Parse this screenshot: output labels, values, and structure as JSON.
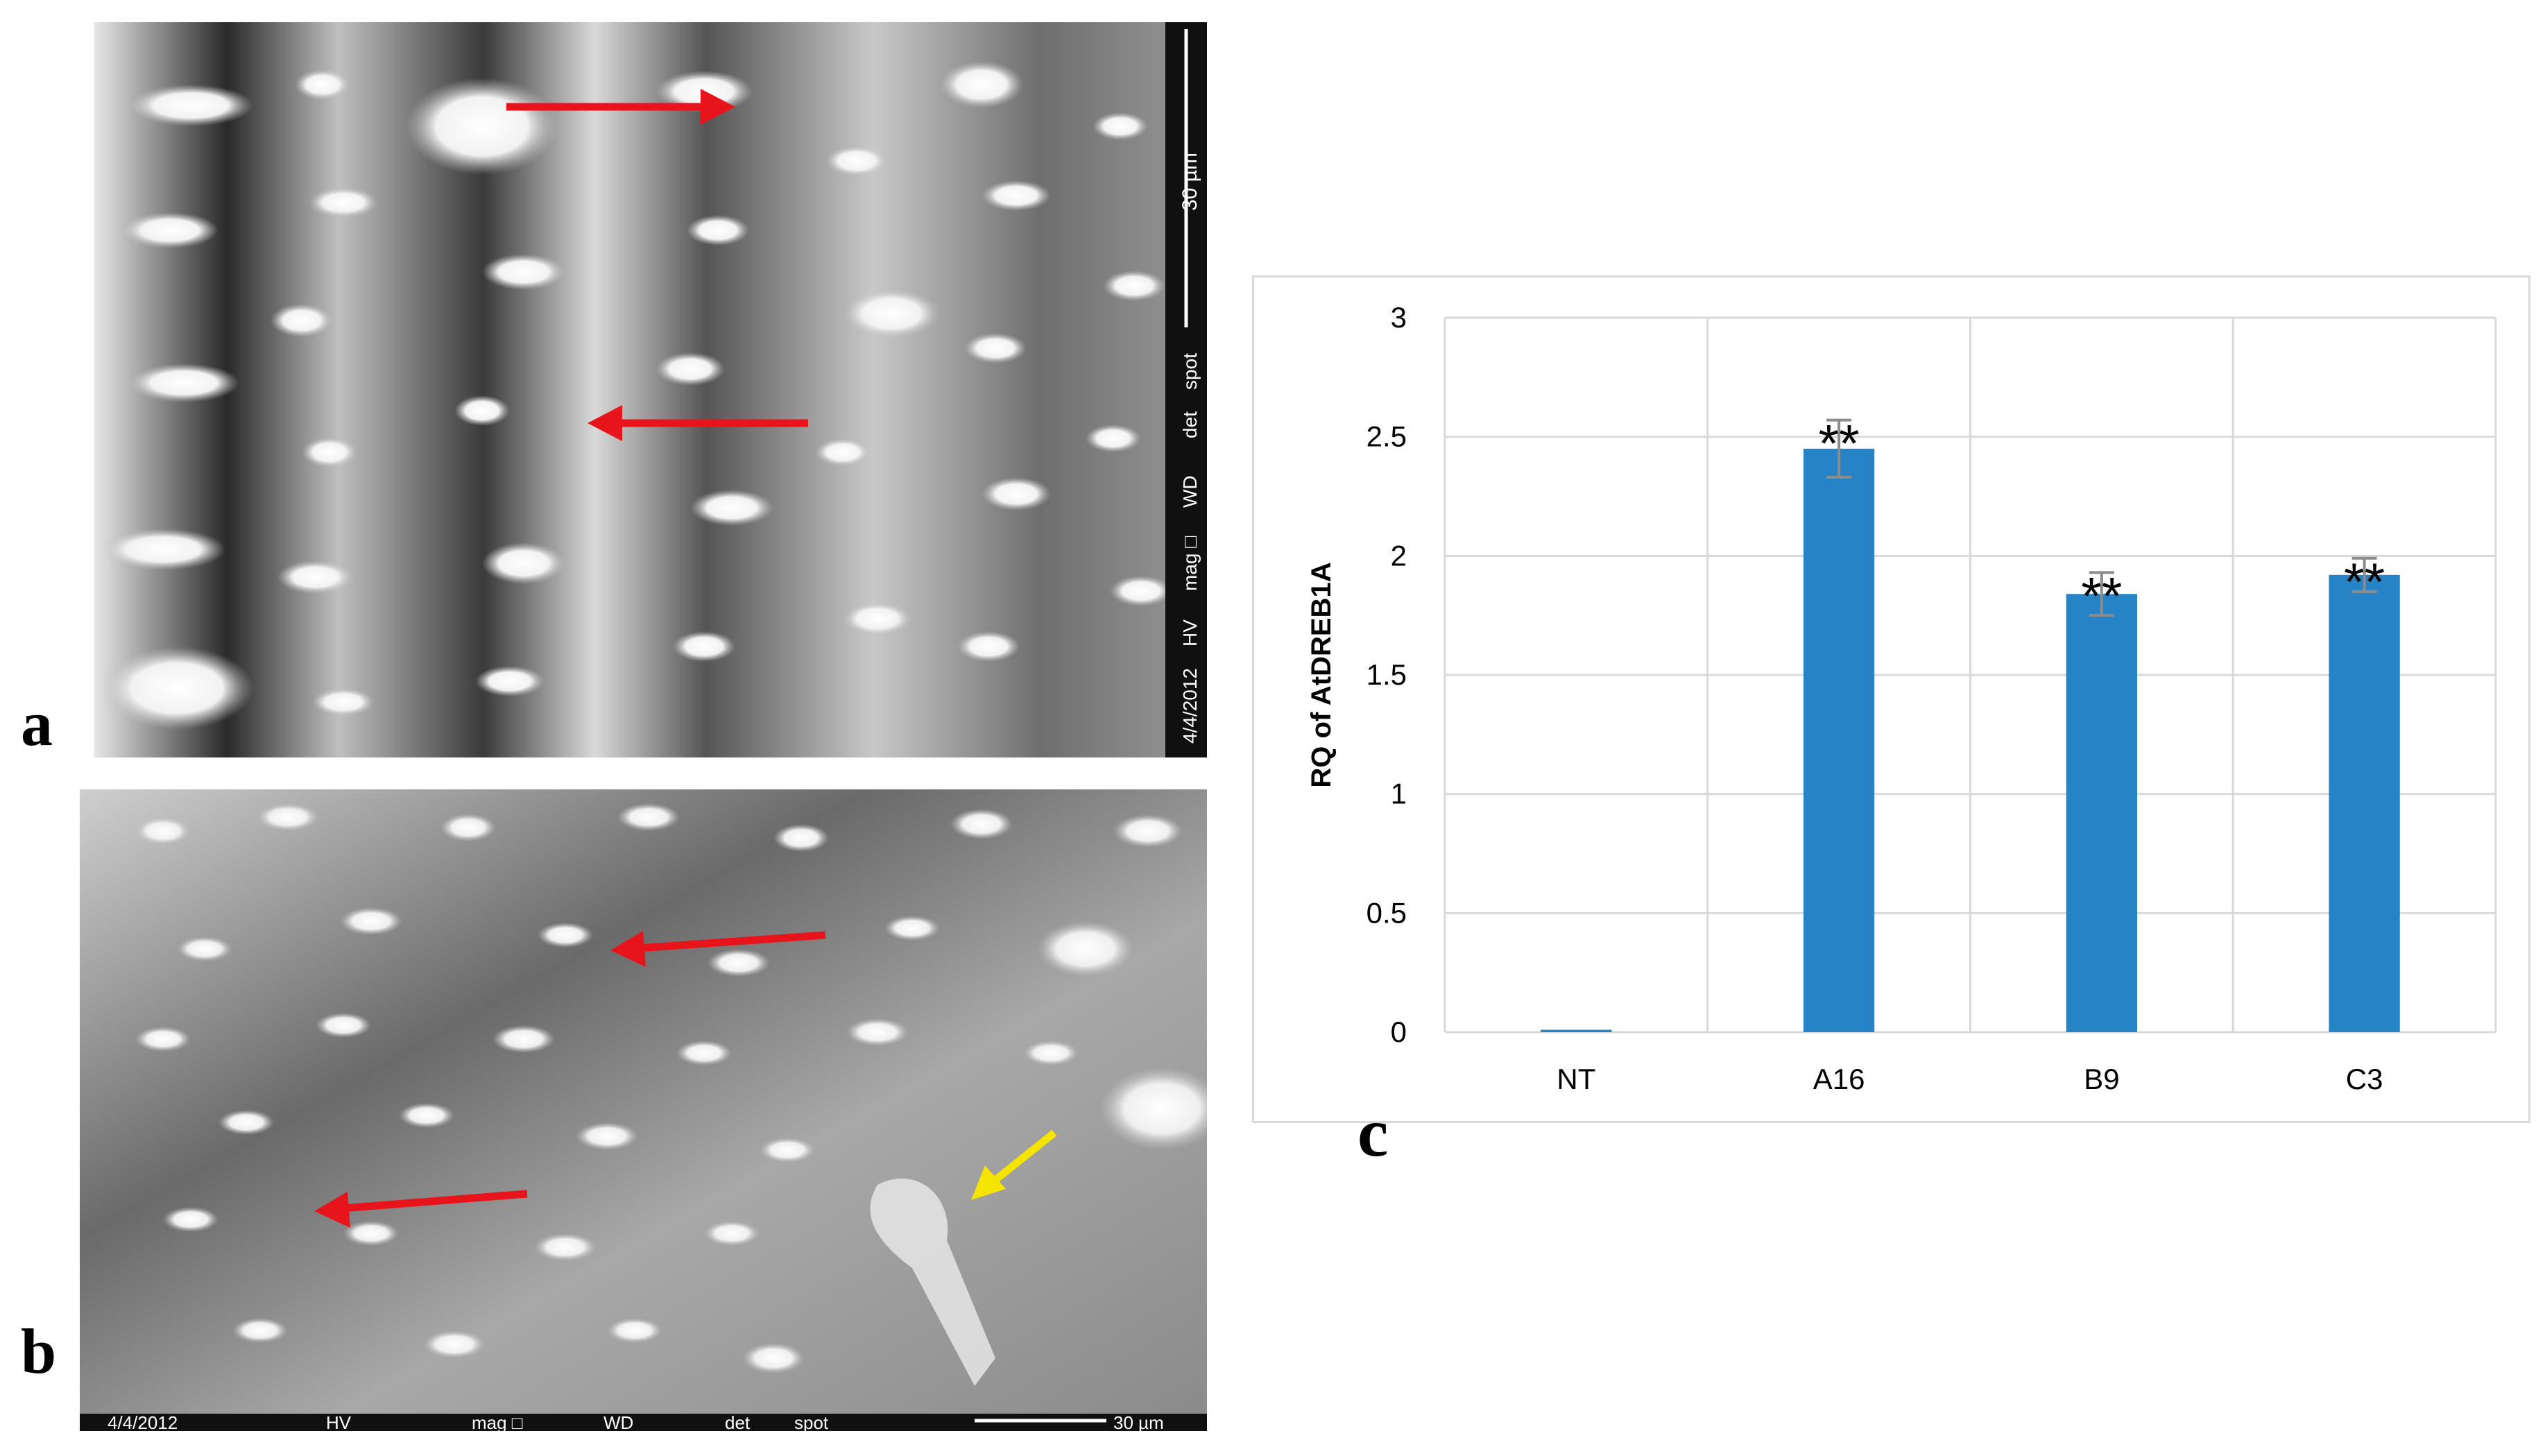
{
  "figure": {
    "panel_labels": {
      "a": "a",
      "b": "b",
      "c": "c"
    },
    "sem_a": {
      "scale_label": "30 µm",
      "info_fields": [
        "4/4/2012",
        "HV",
        "mag □",
        "WD",
        "det",
        "spot"
      ],
      "arrows": [
        {
          "color": "#e8141b",
          "role": "indicator"
        },
        {
          "color": "#e8141b",
          "role": "indicator"
        }
      ]
    },
    "sem_b": {
      "scale_label": "30 µm",
      "info_fields": [
        "4/4/2012",
        "HV",
        "mag □",
        "WD",
        "det",
        "spot"
      ],
      "arrows": [
        {
          "color": "#e8141b",
          "role": "indicator"
        },
        {
          "color": "#e8141b",
          "role": "indicator"
        },
        {
          "color": "#f5e400",
          "role": "indicator"
        }
      ]
    }
  },
  "chart_data": {
    "type": "bar",
    "title": "",
    "xlabel": "",
    "ylabel": "RQ of AtDREB1A",
    "categories": [
      "NT",
      "A16",
      "B9",
      "C3"
    ],
    "values": [
      0.01,
      2.45,
      1.84,
      1.92
    ],
    "errors": [
      0,
      0.12,
      0.09,
      0.07
    ],
    "annotations": [
      "",
      "**",
      "**",
      "**"
    ],
    "ylim": [
      0,
      3
    ],
    "yticks": [
      "0",
      "0.5",
      "1",
      "1.5",
      "2",
      "2.5",
      "3"
    ],
    "grid": true,
    "bar_color": "#2683c6",
    "error_color": "#8c8c8c"
  }
}
